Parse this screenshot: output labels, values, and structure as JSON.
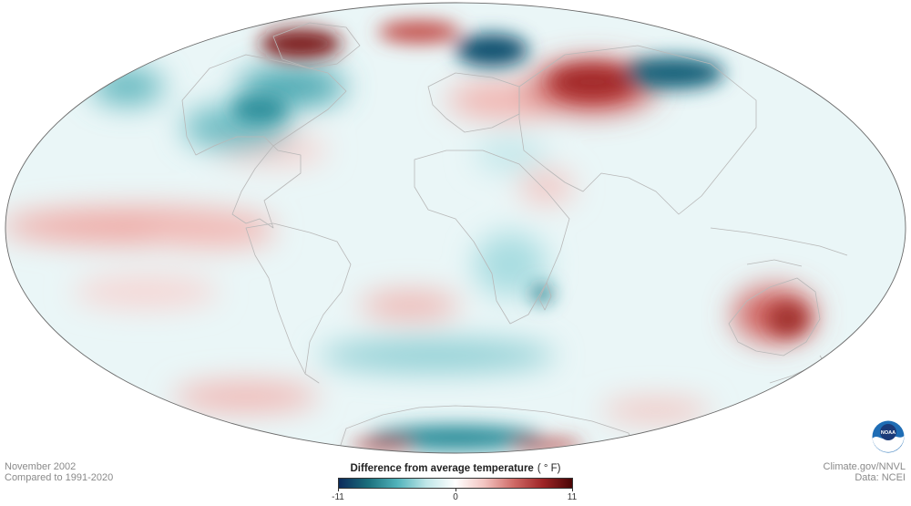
{
  "map": {
    "period": "November 2002",
    "baseline": "Compared to 1991-2020"
  },
  "legend": {
    "title": "Difference from average temperature",
    "unit": "( ° F)",
    "ticks": [
      "-11",
      "0",
      "11"
    ],
    "min": -11,
    "max": 11,
    "colors": [
      "#0b2a5b",
      "#1a6f7c",
      "#51b3bb",
      "#bfe6e8",
      "#ffffff",
      "#f2c3c0",
      "#cf6a66",
      "#9e2426",
      "#4a0505"
    ]
  },
  "credits": {
    "source": "Climate.gov/NNVL",
    "data": "Data: NCEI"
  },
  "logo": {
    "text": "NOAA",
    "icon": "noaa-logo-icon"
  }
}
